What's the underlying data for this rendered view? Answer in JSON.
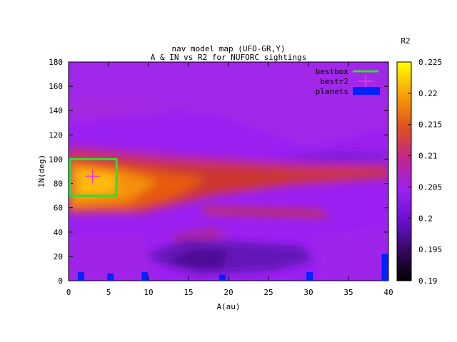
{
  "chart_data": {
    "type": "heatmap",
    "title": "nav model map (UFO-GR,Y)",
    "subtitle": "A & IN vs R2 for NUFORC sightings",
    "xlabel": "A(au)",
    "ylabel": "IN(deg)",
    "colorbar_label": "R2",
    "xlim": [
      0,
      40
    ],
    "ylim": [
      0,
      180
    ],
    "zlim": [
      0.19,
      0.225
    ],
    "xticks": [
      "0",
      "5",
      "10",
      "15",
      "20",
      "25",
      "30",
      "35",
      "40"
    ],
    "yticks": [
      "0",
      "20",
      "40",
      "60",
      "80",
      "100",
      "120",
      "140",
      "160",
      "180"
    ],
    "zticks": [
      "0.19",
      "0.195",
      "0.2",
      "0.205",
      "0.21",
      "0.215",
      "0.22",
      "0.225"
    ],
    "legend_position": "top-right",
    "legend": [
      {
        "label": "bestbox",
        "color": "#33dd33"
      },
      {
        "label": "bestr2",
        "color": "#ff33cc"
      },
      {
        "label": "planets",
        "color": "#0022ff"
      }
    ],
    "bestbox": {
      "x": [
        0,
        6
      ],
      "y": [
        70,
        100
      ]
    },
    "bestr2": {
      "x": 3,
      "y": 86
    },
    "planets": [
      {
        "a": 1.52,
        "in": 7
      },
      {
        "a": 5.2,
        "in": 6
      },
      {
        "a": 9.5,
        "in": 7
      },
      {
        "a": 19.2,
        "in": 5
      },
      {
        "a": 30.1,
        "in": 7
      },
      {
        "a": 39.5,
        "in": 22
      }
    ]
  }
}
